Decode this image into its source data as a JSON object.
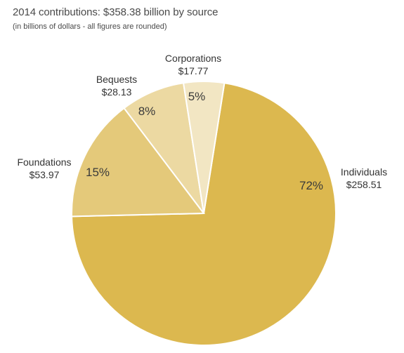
{
  "chart_data": {
    "type": "pie",
    "title": "2014 contributions: $358.38 billion by source",
    "subtitle": "(in billions of dollars - all figures are rounded)",
    "slices": [
      {
        "name": "Individuals",
        "value": 258.51,
        "percent_label": "72%",
        "value_label": "$258.51",
        "color": "#dcb84f"
      },
      {
        "name": "Foundations",
        "value": 53.97,
        "percent_label": "15%",
        "value_label": "$53.97",
        "color": "#e4c97a"
      },
      {
        "name": "Bequests",
        "value": 28.13,
        "percent_label": "8%",
        "value_label": "$28.13",
        "color": "#ecd9a2"
      },
      {
        "name": "Corporations",
        "value": 17.77,
        "percent_label": "5%",
        "value_label": "$17.77",
        "color": "#f2e6c3"
      }
    ],
    "start_angle_deg": 9,
    "direction": "clockwise"
  }
}
